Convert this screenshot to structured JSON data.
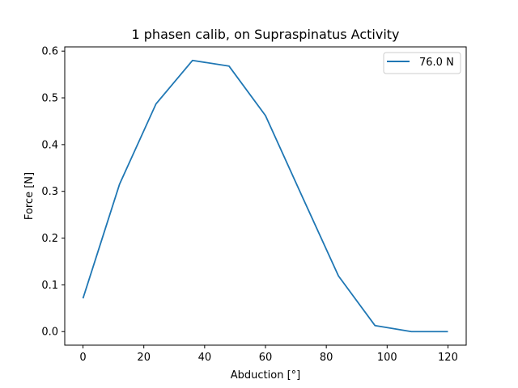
{
  "chart_data": {
    "type": "line",
    "title": "1 phasen calib, on Supraspinatus Activity",
    "xlabel": "Abduction [°]",
    "ylabel": "Force [N]",
    "xlim": [
      -6,
      126
    ],
    "ylim": [
      -0.029,
      0.609
    ],
    "xticks": [
      0,
      20,
      40,
      60,
      80,
      100,
      120
    ],
    "yticks": [
      0.0,
      0.1,
      0.2,
      0.3,
      0.4,
      0.5,
      0.6
    ],
    "xtick_labels": [
      "0",
      "20",
      "40",
      "60",
      "80",
      "100",
      "120"
    ],
    "ytick_labels": [
      "0.0",
      "0.1",
      "0.2",
      "0.3",
      "0.4",
      "0.5",
      "0.6"
    ],
    "grid": false,
    "legend_position": "top-right",
    "series": [
      {
        "name": "76.0 N",
        "color": "#1f77b4",
        "x": [
          0,
          12,
          24,
          36,
          48,
          60,
          72,
          84,
          96,
          108,
          120
        ],
        "y": [
          0.071,
          0.315,
          0.487,
          0.58,
          0.568,
          0.462,
          0.29,
          0.119,
          0.013,
          0.0,
          0.0
        ]
      }
    ]
  }
}
